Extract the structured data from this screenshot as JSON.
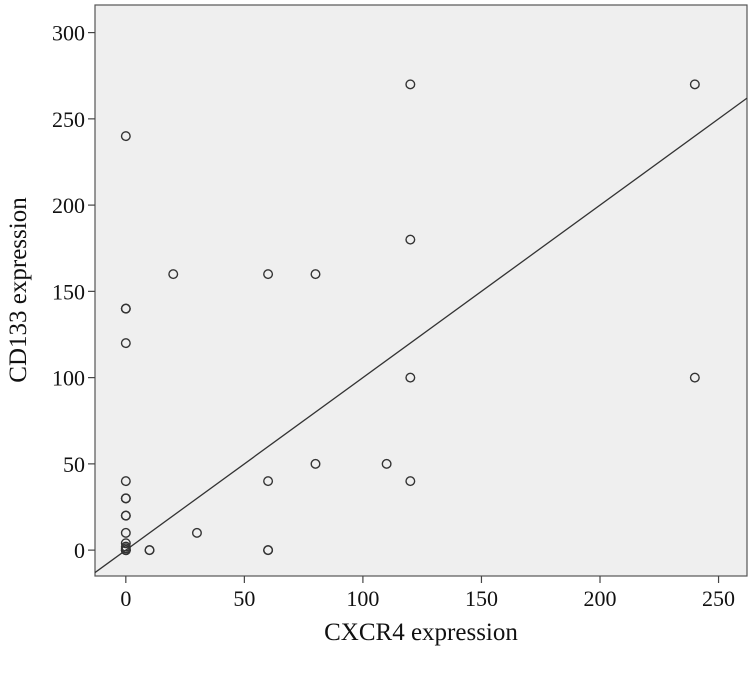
{
  "chart_data": {
    "type": "scatter",
    "title": "",
    "xlabel": "CXCR4 expression",
    "ylabel": "CD133 expression",
    "xlim": [
      -13,
      262
    ],
    "ylim": [
      -15,
      316
    ],
    "x_ticks": [
      0,
      50,
      100,
      150,
      200,
      250
    ],
    "y_ticks": [
      0,
      50,
      100,
      150,
      200,
      250,
      300
    ],
    "grid": false,
    "legend": "none",
    "reference_line": {
      "type": "identity",
      "description": "y = x"
    },
    "colors": {
      "plot_background": "#efefef",
      "marker": "#333333",
      "line": "#333333"
    },
    "series": [
      {
        "points": [
          [
            0,
            0
          ],
          [
            0,
            0
          ],
          [
            0,
            0
          ],
          [
            0,
            0
          ],
          [
            0,
            1
          ],
          [
            0,
            2
          ],
          [
            0,
            4
          ],
          [
            0,
            10
          ],
          [
            0,
            20
          ],
          [
            0,
            20
          ],
          [
            0,
            30
          ],
          [
            0,
            30
          ],
          [
            0,
            40
          ],
          [
            0,
            120
          ],
          [
            0,
            140
          ],
          [
            0,
            140
          ],
          [
            0,
            240
          ],
          [
            10,
            0
          ],
          [
            10,
            0
          ],
          [
            20,
            160
          ],
          [
            30,
            10
          ],
          [
            60,
            0
          ],
          [
            60,
            0
          ],
          [
            60,
            40
          ],
          [
            60,
            160
          ],
          [
            80,
            50
          ],
          [
            80,
            160
          ],
          [
            110,
            50
          ],
          [
            120,
            40
          ],
          [
            120,
            100
          ],
          [
            120,
            180
          ],
          [
            120,
            270
          ],
          [
            240,
            100
          ],
          [
            240,
            270
          ]
        ]
      }
    ]
  }
}
